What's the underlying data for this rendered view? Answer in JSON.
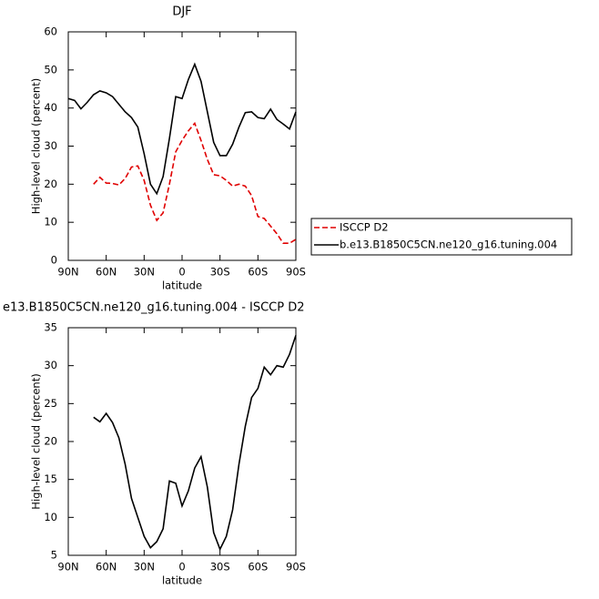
{
  "chart_data": [
    {
      "type": "line",
      "title": "DJF",
      "xlabel": "latitude",
      "ylabel": "High-level cloud (percent)",
      "x": [
        90,
        85,
        80,
        75,
        70,
        65,
        60,
        55,
        50,
        45,
        40,
        35,
        30,
        25,
        20,
        15,
        10,
        5,
        0,
        -5,
        -10,
        -15,
        -20,
        -25,
        -30,
        -35,
        -40,
        -45,
        -50,
        -55,
        -60,
        -65,
        -70,
        -75,
        -80,
        -85,
        -90
      ],
      "series": [
        {
          "name": "ISCCP D2",
          "color": "#e00000",
          "dashed": true,
          "values": [
            null,
            null,
            null,
            null,
            20,
            21.8,
            20.3,
            20.2,
            19.8,
            21.5,
            24.5,
            24.8,
            21,
            14.5,
            10.5,
            12.5,
            20,
            28.5,
            31.5,
            34,
            36,
            31.5,
            26.5,
            22.5,
            22.2,
            21,
            19.5,
            20,
            19.5,
            17,
            11.5,
            11,
            9,
            7,
            4.5,
            4.5,
            5.5
          ]
        },
        {
          "name": "b.e13.B1850C5CN.ne120_g16.tuning.004",
          "color": "#000000",
          "dashed": false,
          "values": [
            42.5,
            42,
            39.8,
            41.5,
            43.5,
            44.5,
            44,
            43,
            41,
            39,
            37.5,
            35,
            28,
            20,
            17.5,
            22,
            32,
            43,
            42.5,
            47.5,
            51.5,
            47,
            39,
            31,
            27.5,
            27.5,
            30.5,
            35,
            38.8,
            39,
            37.5,
            37.2,
            39.7,
            37,
            35.8,
            34.5,
            39
          ]
        }
      ],
      "xlim": [
        90,
        -90
      ],
      "xticks": [
        {
          "value": 90,
          "label": "90N"
        },
        {
          "value": 60,
          "label": "60N"
        },
        {
          "value": 30,
          "label": "30N"
        },
        0,
        {
          "value": -30,
          "label": "30S"
        },
        {
          "value": -60,
          "label": "60S"
        },
        {
          "value": -90,
          "label": "90S"
        }
      ],
      "ylim": [
        0,
        60
      ],
      "yticks": [
        0,
        10,
        20,
        30,
        40,
        50,
        60
      ],
      "legend": "right"
    },
    {
      "type": "line",
      "title": "e13.B1850C5CN.ne120_g16.tuning.004 - ISCCP D2",
      "xlabel": "latitude",
      "ylabel": "High-level cloud (percent)",
      "x": [
        90,
        85,
        80,
        75,
        70,
        65,
        60,
        55,
        50,
        45,
        40,
        35,
        30,
        25,
        20,
        15,
        10,
        5,
        0,
        -5,
        -10,
        -15,
        -20,
        -25,
        -30,
        -35,
        -40,
        -45,
        -50,
        -55,
        -60,
        -65,
        -70,
        -75,
        -80,
        -85,
        -90
      ],
      "series": [
        {
          "color": "#000000",
          "dashed": false,
          "values": [
            null,
            null,
            null,
            null,
            23.2,
            22.6,
            23.7,
            22.5,
            20.5,
            17,
            12.5,
            10,
            7.5,
            6,
            6.8,
            8.5,
            14.8,
            14.5,
            11.5,
            13.5,
            16.5,
            18,
            14,
            8,
            5.8,
            7.5,
            11,
            17,
            22,
            25.8,
            27,
            29.8,
            28.8,
            30,
            29.8,
            31.5,
            34
          ]
        }
      ],
      "xlim": [
        90,
        -90
      ],
      "xticks": [
        {
          "value": 90,
          "label": "90N"
        },
        {
          "value": 60,
          "label": "60N"
        },
        {
          "value": 30,
          "label": "30N"
        },
        0,
        {
          "value": -30,
          "label": "30S"
        },
        {
          "value": -60,
          "label": "60S"
        },
        {
          "value": -90,
          "label": "90S"
        }
      ],
      "ylim": [
        5,
        35
      ],
      "yticks": [
        5,
        10,
        15,
        20,
        25,
        30,
        35
      ]
    }
  ]
}
